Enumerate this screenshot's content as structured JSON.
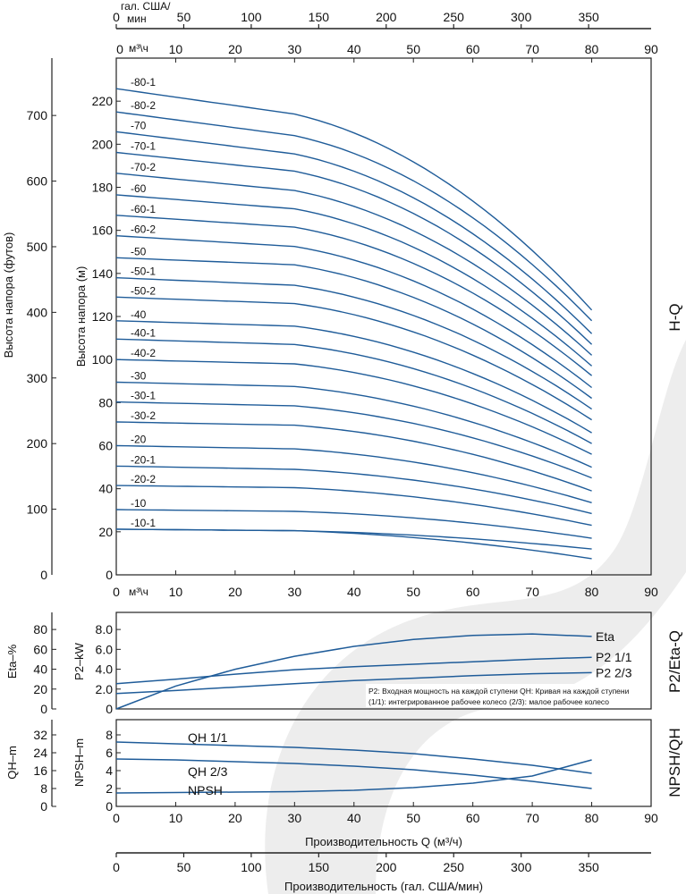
{
  "colors": {
    "curve": "#1f5c99",
    "frame": "#222222",
    "watermark": "#e6e6e6"
  },
  "top_axes": {
    "gpm_title_line1": "гал. США/",
    "gpm_title_line2": "мин",
    "gpm_ticks": [
      "0",
      "50",
      "100",
      "150",
      "200",
      "250",
      "300",
      "350"
    ],
    "flow_unit": "м³\\ч",
    "flow_ticks": [
      "0",
      "10",
      "20",
      "30",
      "40",
      "50",
      "60",
      "70",
      "80",
      "90"
    ]
  },
  "labels": {
    "side_hq": "H-Q",
    "side_p2eta": "P2/Eta-Q",
    "side_npshqh": "NPSH/QH",
    "bottom_flow_title": "Производительность Q (м³/ч)",
    "bottom_gpm_title": "Производительность (гал. США/мин)",
    "note_line1": "P2: Входная мощность на каждой ступени QH: Кривая на каждой ступени",
    "note_line2": "(1/1): интегрированное рабочее колесо (2/3): малое рабочее колесо"
  },
  "chart_data": [
    {
      "type": "line",
      "panel": "H-Q",
      "x_unit_label": "м³\\ч",
      "xlabel": "",
      "ylabel": "Высота напора (м)",
      "ylabel_secondary": "Высота напора (футов)",
      "xlim": [
        0,
        90
      ],
      "ylim": [
        0,
        240
      ],
      "x_ticks": [
        0,
        10,
        20,
        30,
        40,
        50,
        60,
        70,
        80,
        90
      ],
      "y_ticks": [
        20,
        40,
        60,
        80,
        100,
        120,
        140,
        160,
        180,
        200,
        220
      ],
      "y_ticks_label_zero": "0",
      "y2_ticks": [
        100,
        200,
        300,
        400,
        500,
        600,
        700
      ],
      "y2_zero_label": "0",
      "grid": false,
      "x": [
        0,
        30,
        80
      ],
      "series": [
        {
          "name": "-80-1",
          "values": [
            225.8,
            214.0,
            123.0
          ]
        },
        {
          "name": "-80-2",
          "values": [
            215.0,
            204.0,
            118.0
          ]
        },
        {
          "name": "-70",
          "values": [
            205.8,
            195.5,
            112.0
          ]
        },
        {
          "name": "-70-1",
          "values": [
            196.2,
            187.5,
            107.0
          ]
        },
        {
          "name": "-70-2",
          "values": [
            186.5,
            178.5,
            102.0
          ]
        },
        {
          "name": "-60",
          "values": [
            176.5,
            170.0,
            97.0
          ]
        },
        {
          "name": "-60-1",
          "values": [
            167.0,
            161.5,
            92.5
          ]
        },
        {
          "name": "-60-2",
          "values": [
            157.5,
            152.5,
            87.0
          ]
        },
        {
          "name": "-50",
          "values": [
            147.3,
            144.0,
            82.0
          ]
        },
        {
          "name": "-50-1",
          "values": [
            138.0,
            134.5,
            77.0
          ]
        },
        {
          "name": "-50-2",
          "values": [
            129.0,
            126.0,
            72.0
          ]
        },
        {
          "name": "-40",
          "values": [
            118.0,
            115.5,
            66.0
          ]
        },
        {
          "name": "-40-1",
          "values": [
            109.5,
            107.0,
            61.0
          ]
        },
        {
          "name": "-40-2",
          "values": [
            100.0,
            98.0,
            56.0
          ]
        },
        {
          "name": "-30",
          "values": [
            89.5,
            87.5,
            50.0
          ]
        },
        {
          "name": "-30-1",
          "values": [
            80.3,
            78.5,
            45.0
          ]
        },
        {
          "name": "-30-2",
          "values": [
            71.0,
            69.5,
            39.0
          ]
        },
        {
          "name": "-20",
          "values": [
            60.0,
            58.5,
            33.5
          ]
        },
        {
          "name": "-20-1",
          "values": [
            50.5,
            49.0,
            28.5
          ]
        },
        {
          "name": "-20-2",
          "values": [
            41.5,
            40.5,
            23.0
          ]
        },
        {
          "name": "-10",
          "values": [
            30.3,
            29.5,
            17.0
          ]
        },
        {
          "name": "-10-1",
          "values": [
            21.2,
            20.5,
            12.0
          ]
        },
        {
          "name": "",
          "values": [
            21.2,
            20.5,
            7.5
          ]
        }
      ]
    },
    {
      "type": "line",
      "panel": "P2/Eta-Q",
      "xlim": [
        0,
        80
      ],
      "ylim": [
        0,
        9
      ],
      "y_label": "P2–kW",
      "y_ticks": [
        "0",
        "2.0",
        "4.0",
        "6.0",
        "8.0"
      ],
      "y2_label": "Eta–%",
      "y2_ticks": [
        "0",
        "20",
        "40",
        "60",
        "80"
      ],
      "x": [
        0,
        10,
        20,
        30,
        40,
        50,
        60,
        70,
        80
      ],
      "series": [
        {
          "name": "Eta",
          "values": [
            0.0,
            2.3,
            4.0,
            5.3,
            6.3,
            7.0,
            7.4,
            7.55,
            7.3
          ]
        },
        {
          "name": "P2 1/1",
          "values": [
            2.55,
            3.0,
            3.5,
            3.95,
            4.25,
            4.5,
            4.75,
            5.0,
            5.2
          ]
        },
        {
          "name": "P2 2/3",
          "values": [
            1.55,
            1.85,
            2.2,
            2.55,
            2.85,
            3.1,
            3.35,
            3.55,
            3.65
          ]
        }
      ]
    },
    {
      "type": "line",
      "panel": "NPSH/QH",
      "xlim": [
        0,
        90
      ],
      "ylim": [
        0,
        9
      ],
      "y_label": "NPSH–m",
      "y_ticks": [
        "0",
        "2",
        "4",
        "6",
        "8"
      ],
      "y2_label": "QH–m",
      "y2_ticks": [
        "0",
        "8",
        "16",
        "24",
        "32"
      ],
      "x": [
        0,
        10,
        20,
        30,
        40,
        50,
        60,
        70,
        80
      ],
      "series": [
        {
          "name": "QH 1/1",
          "values": [
            7.2,
            7.0,
            6.8,
            6.6,
            6.3,
            5.9,
            5.3,
            4.6,
            3.7
          ]
        },
        {
          "name": "QH 2/3",
          "values": [
            5.3,
            5.2,
            5.0,
            4.8,
            4.5,
            4.1,
            3.5,
            2.8,
            2.0
          ]
        },
        {
          "name": "NPSH",
          "values": [
            1.5,
            1.55,
            1.6,
            1.65,
            1.8,
            2.1,
            2.6,
            3.4,
            5.2
          ]
        }
      ]
    }
  ],
  "bottom_axes": {
    "flow_ticks": [
      "0",
      "10",
      "20",
      "30",
      "40",
      "50",
      "60",
      "70",
      "80",
      "90"
    ],
    "gpm_ticks": [
      "0",
      "50",
      "100",
      "150",
      "200",
      "250",
      "300",
      "350"
    ]
  }
}
